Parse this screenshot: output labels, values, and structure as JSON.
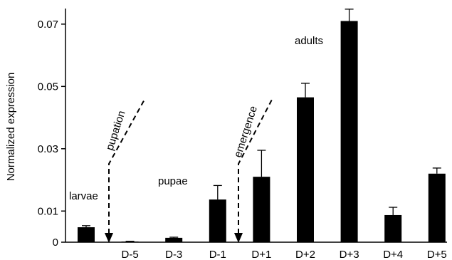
{
  "chart_data": {
    "type": "bar",
    "title": "",
    "xlabel": "",
    "ylabel": "Normalized  expression",
    "ylim": [
      0,
      0.075
    ],
    "yticks": [
      {
        "value": 0,
        "label": "0"
      },
      {
        "value": 0.01,
        "label": "0.01"
      },
      {
        "value": 0.03,
        "label": "0.03"
      },
      {
        "value": 0.05,
        "label": "0.05"
      },
      {
        "value": 0.07,
        "label": "0.07"
      }
    ],
    "grid": false,
    "legend": "none",
    "bar_color": "#000000",
    "categories": [
      "",
      "D-5",
      "D-3",
      "D-1",
      "D+1",
      "D+2",
      "D+3",
      "D+4",
      "D+5"
    ],
    "values": [
      0.0048,
      0.0002,
      0.0014,
      0.0137,
      0.021,
      0.0465,
      0.071,
      0.0087,
      0.022
    ],
    "errors": [
      0.0005,
      0.0001,
      0.0002,
      0.0045,
      0.0085,
      0.0045,
      0.0038,
      0.0025,
      0.0018
    ],
    "annotations": [
      {
        "text": "larvae",
        "category": 0
      },
      {
        "text": "pupae",
        "category": 2
      },
      {
        "text": "adults",
        "category": 5
      },
      {
        "text": "pupation",
        "style": "dashed-arrow",
        "category": 1
      },
      {
        "text": "emergence",
        "style": "dashed-arrow",
        "category": 4
      }
    ]
  }
}
